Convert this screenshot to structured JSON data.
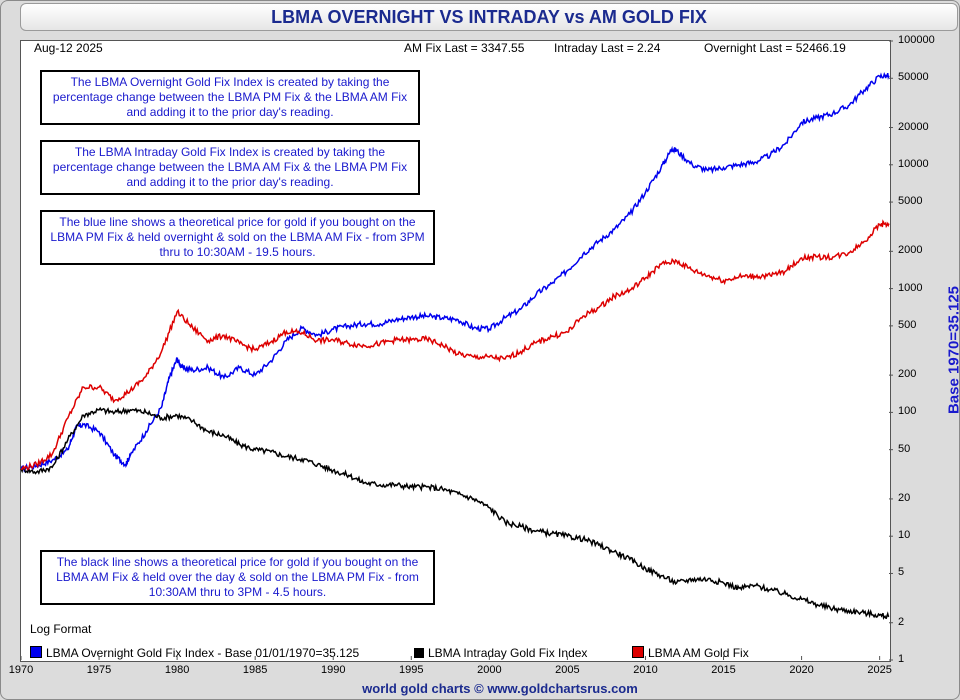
{
  "header": {
    "title": "LBMA OVERNIGHT VS INTRADAY vs AM GOLD FIX",
    "date": "Aug-12  2025",
    "am_fix_last": "AM Fix Last = 3347.55",
    "intraday_last": "Intraday Last = 2.24",
    "overnight_last": "Overnight Last = 52466.19"
  },
  "notes": [
    "The LBMA Overnight Gold Fix Index is created by taking the percentage change between the LBMA PM Fix & the LBMA AM Fix and adding it to the prior day's reading.",
    "The LBMA Intraday Gold Fix Index is created by taking the percentage change between the LBMA AM Fix & the LBMA PM Fix and adding it to the prior day's reading.",
    "The blue line shows a theoretical price for gold if you bought on the LBMA PM Fix & held overnight & sold on the LBMA AM Fix - from 3PM thru to 10:30AM - 19.5 hours.",
    "The black line shows a theoretical price for gold if you bought on the LBMA AM Fix & held over the day & sold on the LBMA PM Fix - from 10:30AM thru to 3PM - 4.5 hours."
  ],
  "log_format_label": "Log Format",
  "footer": "world gold charts © www.goldchartsrus.com",
  "colors": {
    "overnight": "#0000ee",
    "intraday": "#000000",
    "am_fix": "#dd0000"
  },
  "chart_data": {
    "type": "line",
    "title": "LBMA OVERNIGHT VS INTRADAY vs AM GOLD FIX",
    "ylabel": "Base 1970=35.125",
    "y_scale": "log",
    "ylim": [
      1,
      100000
    ],
    "xlim": [
      1970,
      2025.6
    ],
    "grid": false,
    "legend_placement": "bottom",
    "x_ticks": [
      "1970",
      "1975",
      "1980",
      "1985",
      "1990",
      "1995",
      "2000",
      "2005",
      "2010",
      "2015",
      "2020",
      "2025"
    ],
    "y_ticks": [
      "100000",
      "50000",
      "20000",
      "10000",
      "5000",
      "2000",
      "1000",
      "500",
      "200",
      "100",
      "50",
      "20",
      "10",
      "5",
      "2",
      "1"
    ],
    "series": [
      {
        "name": "LBMA Overnight Gold Fix Index - Base 01/01/1970=35.125",
        "color": "#0000ee",
        "x": [
          1970,
          1971,
          1972,
          1973,
          1973.5,
          1974,
          1975,
          1976,
          1976.7,
          1977,
          1978,
          1979,
          1979.5,
          1980,
          1980.3,
          1981,
          1982,
          1983,
          1984,
          1985,
          1986,
          1987,
          1988,
          1989,
          1990,
          1991,
          1992,
          1993,
          1994,
          1995,
          1996,
          1997,
          1998,
          1999,
          2000,
          2001,
          2002,
          2003,
          2004,
          2005,
          2006,
          2007,
          2008,
          2009,
          2010,
          2011,
          2011.7,
          2012,
          2013,
          2014,
          2015,
          2016,
          2017,
          2018,
          2019,
          2020,
          2021,
          2022,
          2023,
          2024,
          2025,
          2025.6
        ],
        "values": [
          35,
          37,
          41,
          50,
          75,
          80,
          70,
          45,
          38,
          45,
          70,
          110,
          190,
          270,
          230,
          220,
          230,
          190,
          230,
          200,
          260,
          380,
          480,
          420,
          470,
          500,
          520,
          520,
          560,
          590,
          600,
          580,
          560,
          480,
          470,
          580,
          680,
          900,
          1100,
          1400,
          1900,
          2400,
          3000,
          4000,
          6000,
          9500,
          13500,
          13000,
          10000,
          9000,
          9500,
          10000,
          10500,
          12000,
          15000,
          22000,
          24000,
          26000,
          30000,
          40000,
          52000,
          52466
        ]
      },
      {
        "name": "LBMA Intraday Gold Fix Index",
        "color": "#000000",
        "x": [
          1970,
          1971,
          1972,
          1973,
          1974,
          1975,
          1976,
          1977,
          1978,
          1979,
          1980,
          1981,
          1982,
          1983,
          1984,
          1985,
          1986,
          1987,
          1988,
          1989,
          1990,
          1991,
          1992,
          1993,
          1994,
          1995,
          1996,
          1997,
          1998,
          1999,
          2000,
          2001,
          2002,
          2003,
          2004,
          2005,
          2006,
          2007,
          2008,
          2009,
          2010,
          2011,
          2012,
          2013,
          2014,
          2015,
          2016,
          2017,
          2018,
          2019,
          2020,
          2021,
          2022,
          2023,
          2024,
          2025,
          2025.6
        ],
        "values": [
          35,
          33,
          36,
          60,
          95,
          105,
          100,
          105,
          100,
          90,
          95,
          85,
          70,
          65,
          55,
          50,
          48,
          44,
          42,
          38,
          34,
          31,
          27,
          26,
          26,
          25,
          25,
          24,
          22,
          20,
          17,
          13,
          12,
          11,
          10.5,
          10,
          9.5,
          8.5,
          7.5,
          6.5,
          5.5,
          4.8,
          4.2,
          4.5,
          4.5,
          4.2,
          3.8,
          4,
          3.7,
          3.4,
          3.1,
          2.8,
          2.6,
          2.5,
          2.4,
          2.3,
          2.24
        ]
      },
      {
        "name": "LBMA AM Gold Fix",
        "color": "#dd0000",
        "x": [
          1970,
          1971,
          1972,
          1973,
          1974,
          1975,
          1976,
          1977,
          1978,
          1979,
          1980,
          1981,
          1982,
          1983,
          1984,
          1985,
          1986,
          1987,
          1988,
          1989,
          1990,
          1991,
          1992,
          1993,
          1994,
          1995,
          1996,
          1997,
          1998,
          1999,
          2000,
          2001,
          2002,
          2003,
          2004,
          2005,
          2006,
          2007,
          2008,
          2009,
          2010,
          2011,
          2012,
          2013,
          2014,
          2015,
          2016,
          2017,
          2018,
          2019,
          2020,
          2021,
          2022,
          2023,
          2024,
          2025,
          2025.6
        ],
        "values": [
          35,
          38,
          46,
          90,
          160,
          160,
          125,
          150,
          195,
          310,
          650,
          480,
          380,
          420,
          360,
          320,
          370,
          450,
          440,
          380,
          385,
          360,
          345,
          360,
          385,
          385,
          390,
          350,
          295,
          280,
          280,
          270,
          310,
          365,
          410,
          445,
          600,
          700,
          870,
          970,
          1220,
          1570,
          1670,
          1410,
          1270,
          1160,
          1250,
          1260,
          1270,
          1390,
          1770,
          1800,
          1800,
          1940,
          2400,
          3300,
          3347.55
        ]
      }
    ]
  }
}
